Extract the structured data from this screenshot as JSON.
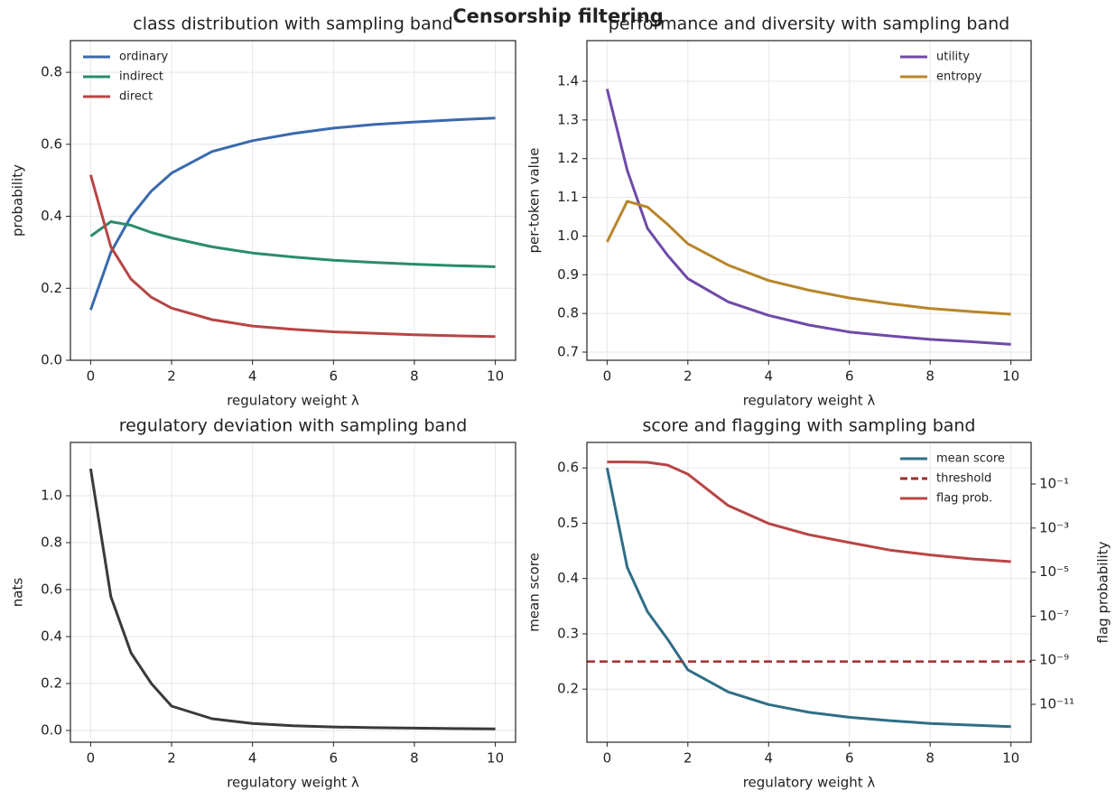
{
  "title": "Censorship filtering",
  "chart_data": [
    {
      "type": "line",
      "title": "class distribution with sampling band",
      "xlabel": "regulatory weight λ",
      "ylabel": "probability",
      "x": [
        0,
        0.5,
        1,
        1.5,
        2,
        3,
        4,
        5,
        6,
        7,
        8,
        9,
        10
      ],
      "series": [
        {
          "name": "ordinary",
          "color": "#3a6aad",
          "values": [
            0.14,
            0.3,
            0.4,
            0.47,
            0.52,
            0.58,
            0.61,
            0.63,
            0.645,
            0.655,
            0.662,
            0.668,
            0.673
          ]
        },
        {
          "name": "indirect",
          "color": "#2a8c6a",
          "values": [
            0.345,
            0.385,
            0.375,
            0.355,
            0.34,
            0.315,
            0.298,
            0.287,
            0.278,
            0.272,
            0.267,
            0.263,
            0.26
          ]
        },
        {
          "name": "direct",
          "color": "#b84545",
          "values": [
            0.515,
            0.315,
            0.225,
            0.175,
            0.145,
            0.113,
            0.095,
            0.086,
            0.079,
            0.075,
            0.071,
            0.068,
            0.066
          ]
        }
      ],
      "xlim": [
        -0.5,
        10.5
      ],
      "ylim": [
        0,
        0.888
      ],
      "xticks": [
        0,
        2,
        4,
        6,
        8,
        10
      ],
      "yticks": [
        {
          "value": 0,
          "label": "0.0"
        },
        0.2,
        0.4,
        0.6,
        0.8
      ],
      "grid": true,
      "legend": "upper left"
    },
    {
      "type": "line",
      "title": "performance and diversity with sampling band",
      "xlabel": "regulatory weight λ",
      "ylabel": "per-token value",
      "x": [
        0,
        0.5,
        1,
        1.5,
        2,
        3,
        4,
        5,
        6,
        7,
        8,
        9,
        10
      ],
      "series": [
        {
          "name": "utility",
          "color": "#6f4aa8",
          "values": [
            1.38,
            1.17,
            1.02,
            0.95,
            0.89,
            0.83,
            0.795,
            0.77,
            0.752,
            0.742,
            0.733,
            0.727,
            0.72
          ]
        },
        {
          "name": "entropy",
          "color": "#b8862a",
          "values": [
            0.985,
            1.09,
            1.075,
            1.03,
            0.98,
            0.925,
            0.885,
            0.86,
            0.84,
            0.825,
            0.813,
            0.805,
            0.798
          ]
        }
      ],
      "xlim": [
        -0.5,
        10.5
      ],
      "ylim": [
        0.679,
        1.505
      ],
      "xticks": [
        0,
        2,
        4,
        6,
        8,
        10
      ],
      "yticks": [
        0.7,
        0.8,
        0.9,
        {
          "value": 1,
          "label": "1.0"
        },
        1.1,
        1.2,
        1.3,
        1.4
      ],
      "grid": true,
      "legend": "upper right"
    },
    {
      "type": "line",
      "title": "regulatory deviation with sampling band",
      "xlabel": "regulatory weight λ",
      "ylabel": "nats",
      "x": [
        0,
        0.5,
        1,
        1.5,
        2,
        3,
        4,
        5,
        6,
        7,
        8,
        9,
        10
      ],
      "series": [
        {
          "color": "#3a3a3a",
          "values": [
            1.115,
            0.57,
            0.33,
            0.2,
            0.104,
            0.05,
            0.03,
            0.02,
            0.015,
            0.012,
            0.01,
            0.008,
            0.007
          ]
        }
      ],
      "xlim": [
        -0.5,
        10.5
      ],
      "ylim": [
        -0.05,
        1.227
      ],
      "xticks": [
        0,
        2,
        4,
        6,
        8,
        10
      ],
      "yticks": [
        {
          "value": 0,
          "label": "0.0"
        },
        0.2,
        0.4,
        0.6,
        0.8,
        {
          "value": 1,
          "label": "1.0"
        }
      ],
      "grid": true
    },
    {
      "type": "line",
      "title": "score and flagging with sampling band",
      "xlabel": "regulatory weight λ",
      "ylabel": "mean score",
      "y2label": "flag probability",
      "x": [
        0,
        0.5,
        1,
        1.5,
        2,
        3,
        4,
        5,
        6,
        7,
        8,
        9,
        10
      ],
      "series": [
        {
          "name": "mean score",
          "color": "#2f6e87",
          "values": [
            0.6,
            0.42,
            0.34,
            0.29,
            0.235,
            0.195,
            0.172,
            0.158,
            0.149,
            0.143,
            0.138,
            0.135,
            0.132
          ]
        },
        {
          "name": "threshold",
          "color": "#a02c2c",
          "y": 0.25,
          "dash": true
        },
        {
          "name": "flag prob.",
          "color": "#b84545",
          "axis": "y2",
          "values": [
            1.0,
            1.0,
            0.97,
            0.72,
            0.28,
            0.0105,
            0.0016,
            0.0005,
            0.00022,
            0.0001,
            6e-05,
            4e-05,
            3e-05
          ]
        }
      ],
      "xlim": [
        -0.5,
        10.5
      ],
      "ylim": [
        0.104,
        0.646
      ],
      "y2lim": [
        1.9e-13,
        7.7
      ],
      "y2log": true,
      "xticks": [
        0,
        2,
        4,
        6,
        8,
        10
      ],
      "yticks": [
        0.2,
        0.3,
        0.4,
        0.5,
        0.6
      ],
      "y2ticks": [
        {
          "value": 0.1,
          "label": "10⁻¹"
        },
        {
          "value": 0.001,
          "label": "10⁻³"
        },
        {
          "value": 1e-05,
          "label": "10⁻⁵"
        },
        {
          "value": 1e-07,
          "label": "10⁻⁷"
        },
        {
          "value": 1e-09,
          "label": "10⁻⁹"
        },
        {
          "value": 1e-11,
          "label": "10⁻¹¹"
        }
      ],
      "grid": true,
      "legend": "upper right"
    }
  ]
}
